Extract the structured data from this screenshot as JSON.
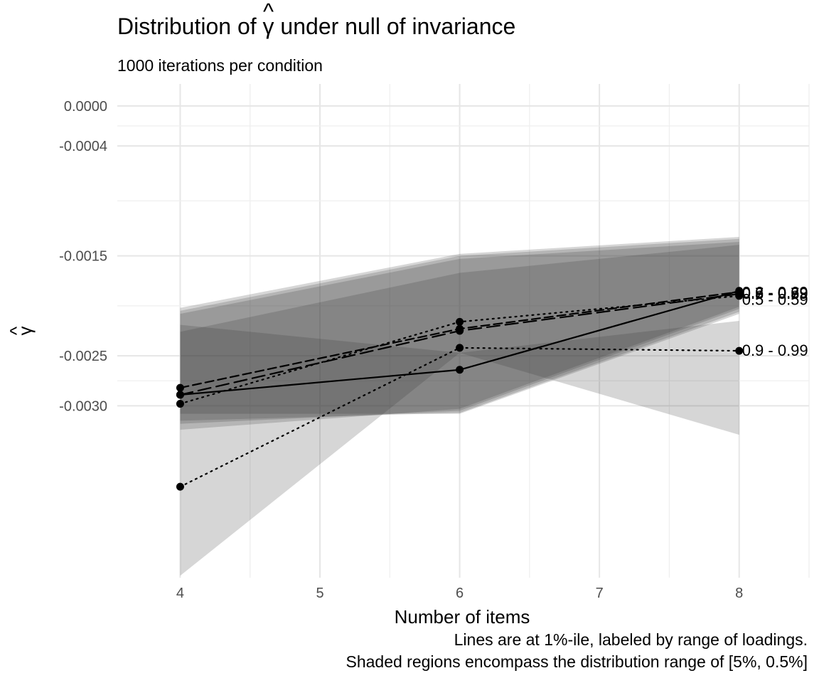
{
  "chart_data": {
    "type": "line",
    "title_prefix": "Distribution of ",
    "title_symbol": "γ",
    "title_hat": "^",
    "title_suffix": " under null of invariance",
    "subtitle": "1000 iterations per condition",
    "xlabel": "Number of items",
    "ylabel_symbol": "γ",
    "ylabel_hat": "^",
    "caption_line1": "Lines are at 1%-ile, labeled by range of loadings.",
    "caption_line2": "Shaded regions encompass the distribution range of [5%, 0.5%]",
    "x_ticks": [
      4,
      5,
      6,
      7,
      8
    ],
    "y_ticks": [
      0,
      -0.0004,
      -0.0015,
      -0.0025,
      -0.003
    ],
    "y_tick_labels": [
      "0.0000",
      "-0.0004",
      "-0.0015",
      "-0.0025",
      "-0.0030"
    ],
    "xlim": [
      3.55,
      8.5
    ],
    "ylim": [
      -0.00472,
      0.00022
    ],
    "legend": "none",
    "grid": true,
    "series": [
      {
        "name": "0.5 - 0.59",
        "x": [
          4,
          6,
          8
        ],
        "y": [
          -0.00289,
          -0.00264,
          -0.00185
        ],
        "linestyle": "solid",
        "band_upper": [
          -0.00202,
          -0.00148,
          -0.00131
        ],
        "band_lower": [
          -0.00324,
          -0.00303,
          -0.00201
        ]
      },
      {
        "name": "0.6 - 0.69",
        "x": [
          4,
          6,
          8
        ],
        "y": [
          -0.00282,
          -0.00223,
          -0.00186
        ],
        "linestyle": "dashed",
        "band_upper": [
          -0.00205,
          -0.0015,
          -0.00133
        ],
        "band_lower": [
          -0.00318,
          -0.00305,
          -0.00203
        ]
      },
      {
        "name": "0.7 - 0.79",
        "x": [
          4,
          6,
          8
        ],
        "y": [
          -0.00289,
          -0.00225,
          -0.00188
        ],
        "linestyle": "longdash",
        "band_upper": [
          -0.00208,
          -0.00153,
          -0.00136
        ],
        "band_lower": [
          -0.00315,
          -0.00307,
          -0.00206
        ]
      },
      {
        "name": "0.8 - 0.89",
        "x": [
          4,
          6,
          8
        ],
        "y": [
          -0.00298,
          -0.00216,
          -0.0019
        ],
        "linestyle": "dotted",
        "band_upper": [
          -0.00226,
          -0.00167,
          -0.00139
        ],
        "band_lower": [
          -0.00308,
          -0.00308,
          -0.00208
        ]
      },
      {
        "name": "0.9 - 0.99",
        "x": [
          4,
          6,
          8
        ],
        "y": [
          -0.00381,
          -0.00242,
          -0.00245
        ],
        "linestyle": "dotted",
        "band_upper": [
          -0.00219,
          -0.00247,
          -0.00215
        ],
        "band_lower": [
          -0.0047,
          -0.00247,
          -0.00329
        ]
      }
    ],
    "label_offsets": [
      {
        "dy": -9e-05
      },
      {
        "dy": -1e-05
      },
      {
        "dy": 0
      },
      {
        "dy": 2e-05
      },
      {
        "dy": 0
      }
    ]
  }
}
